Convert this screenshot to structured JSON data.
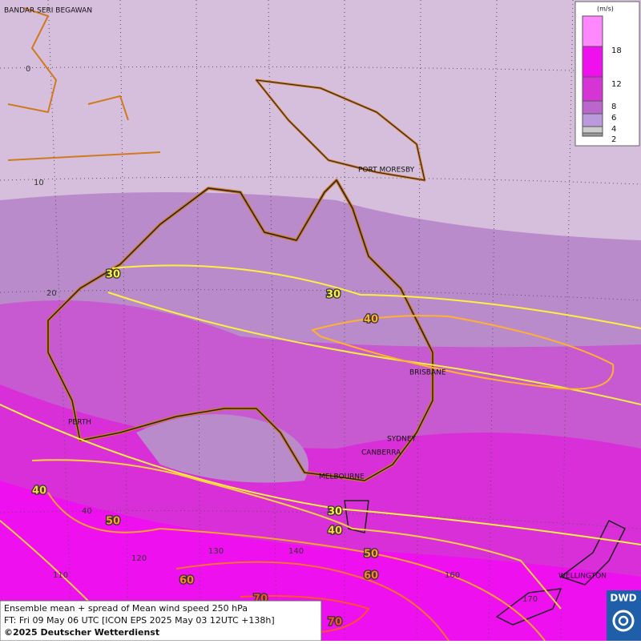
{
  "map": {
    "cities": [
      "BANDAR SERI BEGAWAN",
      "PORT MORESBY",
      "BRISBANE",
      "PERTH",
      "SYDNEY",
      "CANBERRA",
      "MELBOURNE",
      "WELLINGTON"
    ],
    "grid_labels": [
      "0",
      "10",
      "20",
      "40",
      "110",
      "120",
      "130",
      "140",
      "160",
      "170"
    ],
    "contour_labels": [
      "30",
      "30",
      "40",
      "40",
      "50",
      "60",
      "70",
      "30",
      "40",
      "50",
      "60",
      "70"
    ],
    "legend": {
      "unit": "(m/s)",
      "labels": [
        "18",
        "12",
        "8",
        "6",
        "4",
        "2"
      ]
    },
    "caption": [
      "Ensemble mean + spread of Mean wind speed 250 hPa",
      "FT: Fri 09 May 06 UTC [ICON EPS 2025 May 03 12UTC +138h]",
      "©2025 Deutscher Wetterdienst"
    ],
    "logo": "DWD"
  }
}
